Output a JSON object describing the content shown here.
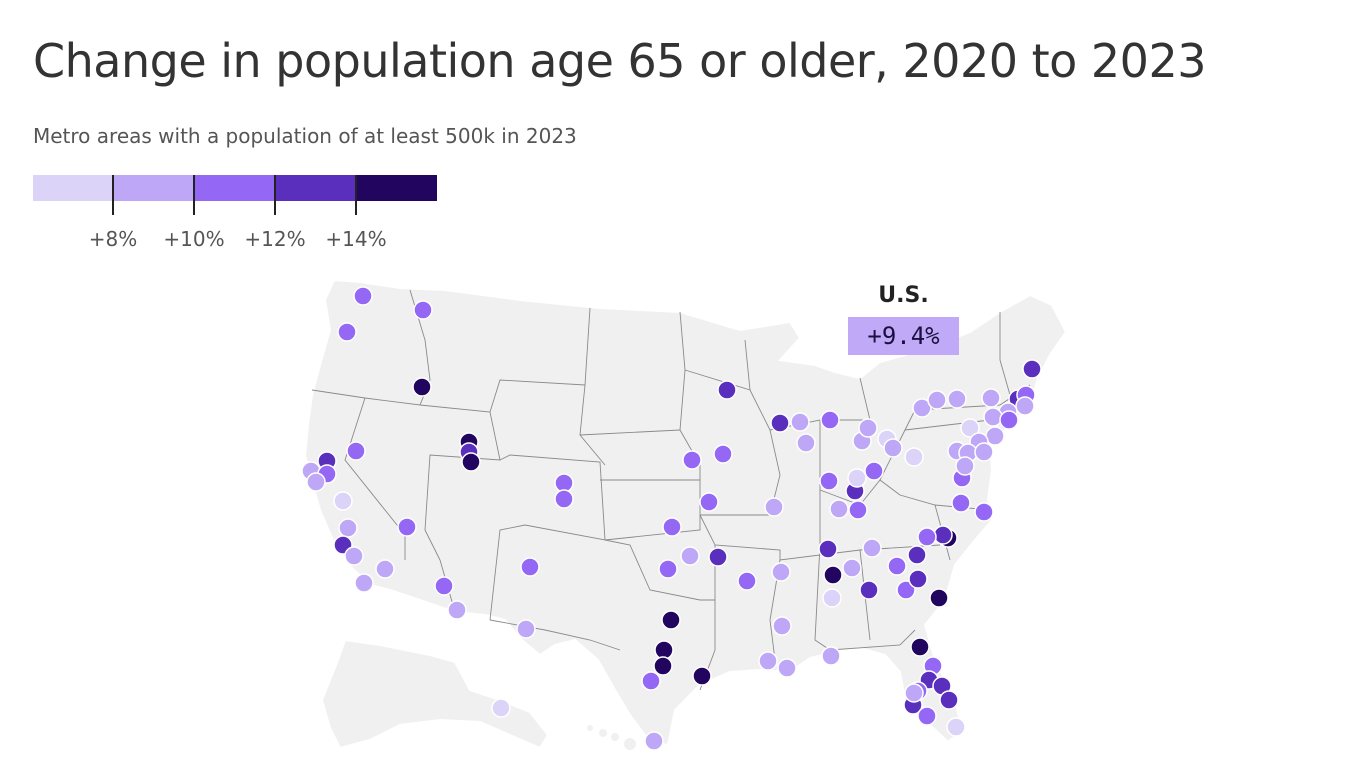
{
  "title": "Change in population age 65 or older, 2020 to 2023",
  "subtitle": "Metro areas with a population of at least 500k in 2023",
  "legend": {
    "colors": [
      "#dcd3f9",
      "#bfa7f7",
      "#9567f5",
      "#5b2fbd",
      "#22055e"
    ],
    "thresholds": [
      "+8%",
      "+10%",
      "+12%",
      "+14%"
    ]
  },
  "callout": {
    "label": "U.S.",
    "value": "+9.4%"
  },
  "map": {
    "land_color": "#f0f0f0",
    "border_color": "#ffffff",
    "state_line_color": "#888888",
    "marker_stroke": "#ffffff",
    "metro_count": 92
  }
}
